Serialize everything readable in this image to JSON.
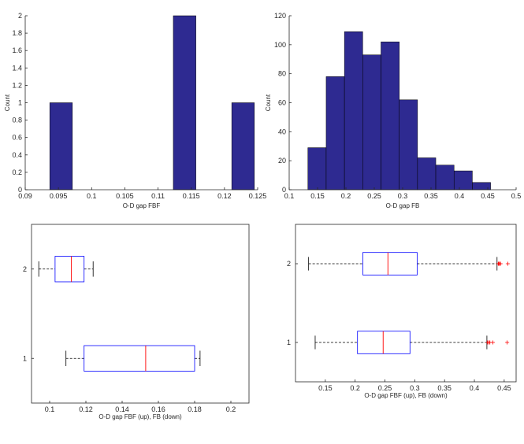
{
  "colors": {
    "bar_fill": "#2E2A91",
    "box_line": "#0000FF",
    "median_line": "#FF0000",
    "outlier": "#FF0000",
    "axis": "#262626",
    "whisker": "#000000"
  },
  "chart_data": [
    {
      "id": "hist-fbf",
      "type": "bar",
      "xlabel": "O-D gap FBF",
      "ylabel": "Count",
      "xlim": [
        0.09,
        0.125
      ],
      "ylim": [
        0,
        2
      ],
      "xticks": [
        0.09,
        0.095,
        0.1,
        0.105,
        0.11,
        0.115,
        0.12,
        0.125
      ],
      "xtick_labels": [
        "0.09",
        "0.095",
        "0.1",
        "0.105",
        "0.11",
        "0.115",
        "0.12",
        "0.125"
      ],
      "yticks": [
        0,
        0.2,
        0.4,
        0.6,
        0.8,
        1,
        1.2,
        1.4,
        1.6,
        1.8,
        2
      ],
      "ytick_labels": [
        "0",
        "0.2",
        "0.4",
        "0.6",
        "0.8",
        "1",
        "1.2",
        "1.4",
        "1.6",
        "1.8",
        "2"
      ],
      "bins": [
        {
          "x0": 0.0937,
          "x1": 0.0971,
          "value": 1
        },
        {
          "x0": 0.1123,
          "x1": 0.1157,
          "value": 2
        },
        {
          "x0": 0.1211,
          "x1": 0.1245,
          "value": 1
        }
      ]
    },
    {
      "id": "hist-fb",
      "type": "bar",
      "xlabel": "O-D gap FB",
      "ylabel": "Count",
      "xlim": [
        0.1,
        0.5
      ],
      "ylim": [
        0,
        120
      ],
      "xticks": [
        0.1,
        0.15,
        0.2,
        0.25,
        0.3,
        0.35,
        0.4,
        0.45,
        0.5
      ],
      "xtick_labels": [
        "0.1",
        "0.15",
        "0.2",
        "0.25",
        "0.3",
        "0.35",
        "0.4",
        "0.45",
        "0.5"
      ],
      "yticks": [
        0,
        20,
        40,
        60,
        80,
        100,
        120
      ],
      "ytick_labels": [
        "0",
        "20",
        "40",
        "60",
        "80",
        "100",
        "120"
      ],
      "bins": [
        {
          "x0": 0.133,
          "x1": 0.1652,
          "value": 29
        },
        {
          "x0": 0.1652,
          "x1": 0.1974,
          "value": 78
        },
        {
          "x0": 0.1974,
          "x1": 0.2296,
          "value": 109
        },
        {
          "x0": 0.2296,
          "x1": 0.2618,
          "value": 93
        },
        {
          "x0": 0.2618,
          "x1": 0.294,
          "value": 102
        },
        {
          "x0": 0.294,
          "x1": 0.3262,
          "value": 62
        },
        {
          "x0": 0.3262,
          "x1": 0.3584,
          "value": 22
        },
        {
          "x0": 0.3584,
          "x1": 0.3906,
          "value": 17
        },
        {
          "x0": 0.3906,
          "x1": 0.4228,
          "value": 13
        },
        {
          "x0": 0.4228,
          "x1": 0.455,
          "value": 5
        }
      ]
    },
    {
      "id": "box-small",
      "type": "boxplot",
      "orientation": "horizontal",
      "xlabel": "O-D gap FBF (up), FB (down)",
      "xlim": [
        0.09,
        0.21
      ],
      "xticks": [
        0.1,
        0.12,
        0.14,
        0.16,
        0.18,
        0.2
      ],
      "xtick_labels": [
        "0.1",
        "0.12",
        "0.14",
        "0.16",
        "0.18",
        "0.2"
      ],
      "ylim": [
        0.5,
        2.5
      ],
      "ytick_labels": [
        "1",
        "2"
      ],
      "boxes": [
        {
          "label": "1",
          "pos": 1,
          "whisker_low": 0.109,
          "q1": 0.119,
          "median": 0.153,
          "q3": 0.18,
          "whisker_high": 0.183,
          "outliers": []
        },
        {
          "label": "2",
          "pos": 2,
          "whisker_low": 0.094,
          "q1": 0.103,
          "median": 0.112,
          "q3": 0.119,
          "whisker_high": 0.124,
          "outliers": []
        }
      ]
    },
    {
      "id": "box-large",
      "type": "boxplot",
      "orientation": "horizontal",
      "xlabel": "O-D gap FBF (up), FB (down)",
      "xlim": [
        0.1,
        0.47
      ],
      "xticks": [
        0.15,
        0.2,
        0.25,
        0.3,
        0.35,
        0.4,
        0.45
      ],
      "xtick_labels": [
        "0.15",
        "0.2",
        "0.25",
        "0.3",
        "0.35",
        "0.4",
        "0.45"
      ],
      "ylim": [
        0.5,
        2.5
      ],
      "ytick_labels": [
        "1",
        "2"
      ],
      "boxes": [
        {
          "label": "1",
          "pos": 1,
          "whisker_low": 0.133,
          "q1": 0.204,
          "median": 0.247,
          "q3": 0.292,
          "whisker_high": 0.421,
          "outliers": [
            0.422,
            0.424,
            0.426,
            0.431,
            0.455
          ]
        },
        {
          "label": "2",
          "pos": 2,
          "whisker_low": 0.122,
          "q1": 0.213,
          "median": 0.255,
          "q3": 0.304,
          "whisker_high": 0.438,
          "outliers": [
            0.44,
            0.441,
            0.442,
            0.444,
            0.456
          ]
        }
      ]
    }
  ]
}
